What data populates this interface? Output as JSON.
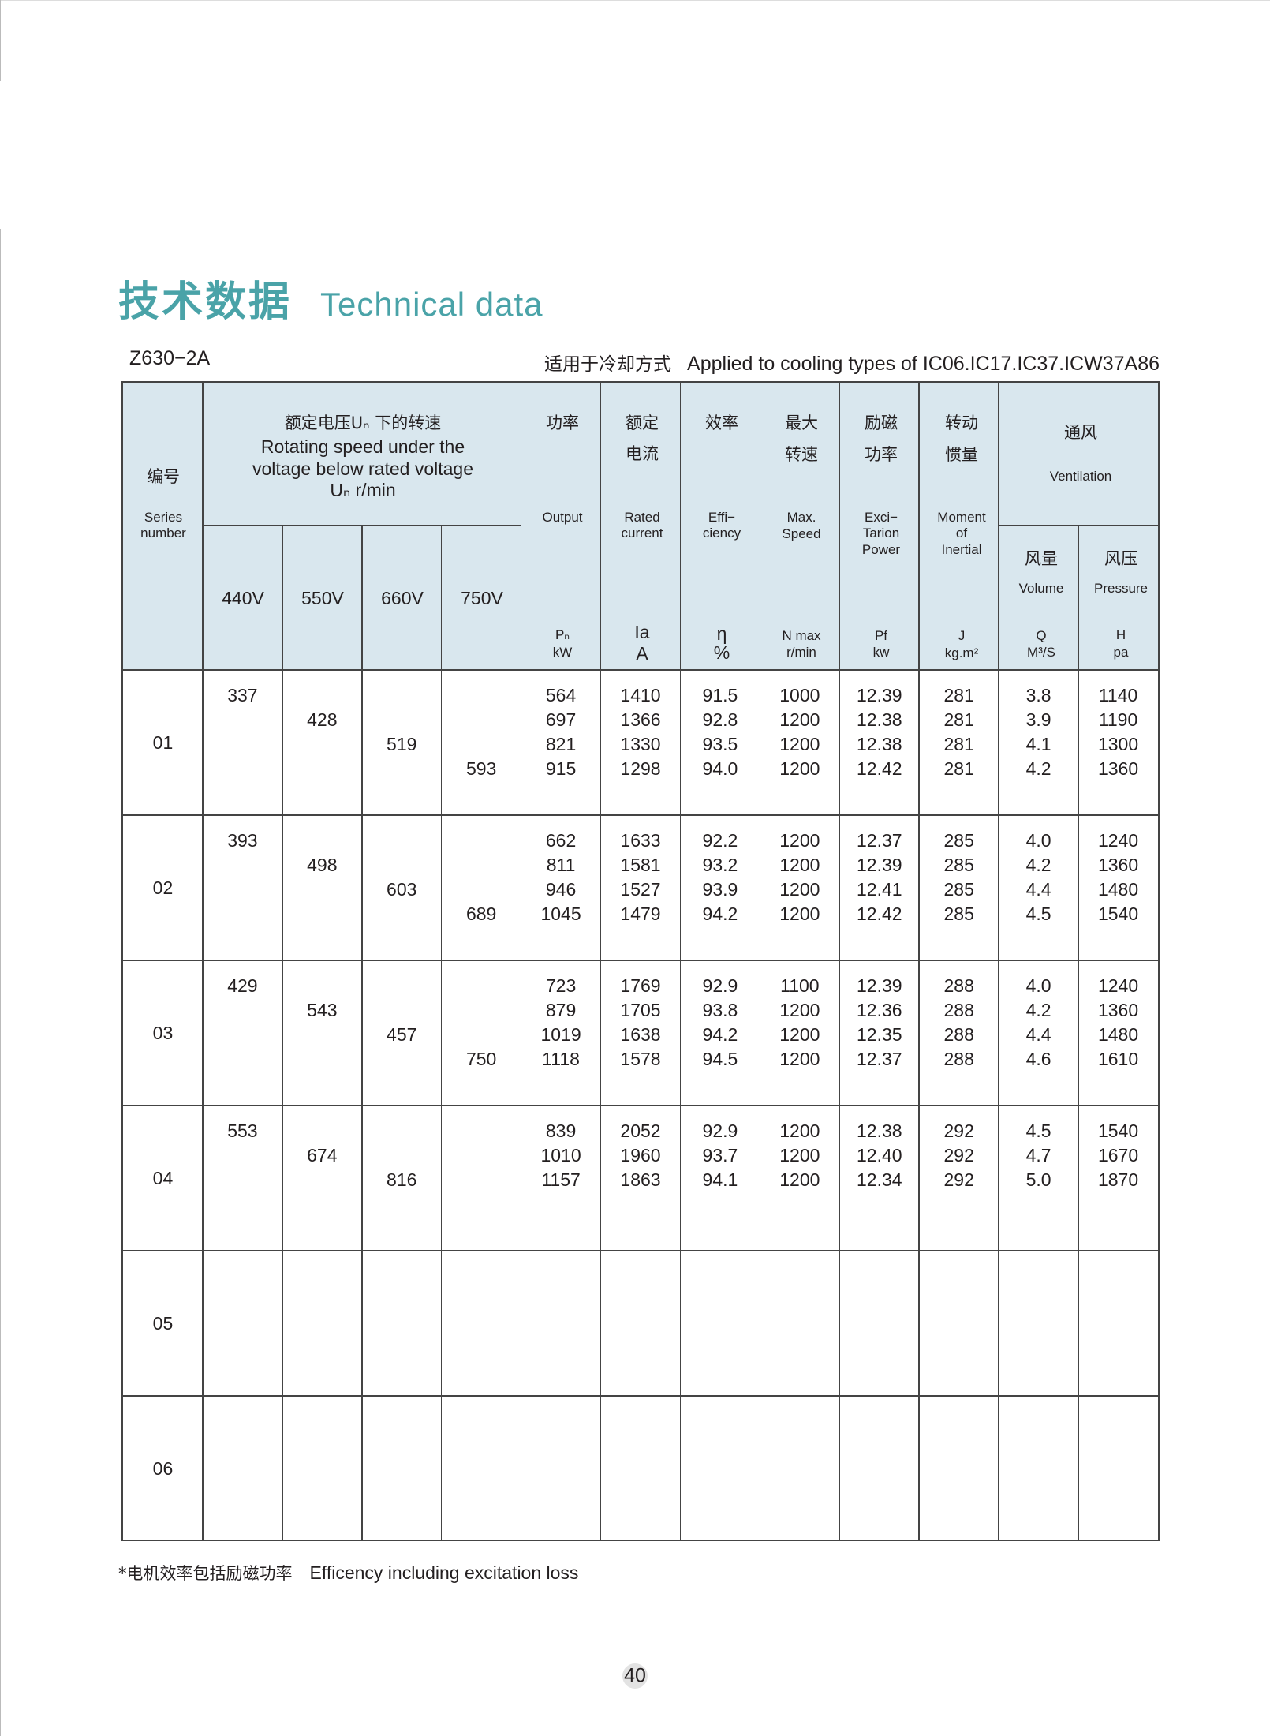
{
  "title": {
    "cn": "技术数据",
    "en": "Technical data"
  },
  "subtitle": {
    "model": "Z630−2A",
    "cooling_cn": "适用于冷却方式",
    "cooling_en": "Applied to cooling types of IC06.IC17.IC37.ICW37A86"
  },
  "header": {
    "series": {
      "cn": "编号",
      "en1": "Series",
      "en2": "number"
    },
    "speed_group": {
      "cn": "额定电压Uₙ 下的转速",
      "en1": "Rotating speed under the",
      "en2": "voltage below rated voltage",
      "en3": "Uₙ  r/min"
    },
    "voltages": [
      "440V",
      "550V",
      "660V",
      "750V"
    ],
    "output": {
      "cn": "功率",
      "en": "Output",
      "sym": "Pₙ",
      "unit": "kW"
    },
    "current": {
      "cn1": "额定",
      "cn2": "电流",
      "en1": "Rated",
      "en2": "current",
      "sym": "Ia",
      "unit": "A"
    },
    "efficiency": {
      "cn": "效率",
      "en1": "Effi−",
      "en2": "ciency",
      "sym": "η",
      "unit": "%"
    },
    "max_speed": {
      "cn1": "最大",
      "cn2": "转速",
      "en1": "Max.",
      "en2": "Speed",
      "sym": "N max",
      "unit": "r/min"
    },
    "excitation": {
      "cn1": "励磁",
      "cn2": "功率",
      "en1": "Exci−",
      "en2": "Tarion",
      "en3": "Power",
      "sym": "Pf",
      "unit": "kw"
    },
    "inertia": {
      "cn1": "转动",
      "cn2": "惯量",
      "en1": "Moment",
      "en2": "of",
      "en3": "Inertial",
      "sym": "J",
      "unit": "kg.m²"
    },
    "ventilation": {
      "cn": "通风",
      "en": "Ventilation",
      "volume": {
        "cn": "风量",
        "en": "Volume",
        "sym": "Q",
        "unit": "M³/S"
      },
      "pressure": {
        "cn": "风压",
        "en": "Pressure",
        "sym": "H",
        "unit": "pa"
      }
    }
  },
  "rows": [
    {
      "series": "01",
      "speeds": [
        "337",
        "428",
        "519",
        "593"
      ],
      "output": [
        "564",
        "697",
        "821",
        "915"
      ],
      "current": [
        "1410",
        "1366",
        "1330",
        "1298"
      ],
      "efficiency": [
        "91.5",
        "92.8",
        "93.5",
        "94.0"
      ],
      "max_speed": [
        "1000",
        "1200",
        "1200",
        "1200"
      ],
      "excitation": [
        "12.39",
        "12.38",
        "12.38",
        "12.42"
      ],
      "inertia": [
        "281",
        "281",
        "281",
        "281"
      ],
      "volume": [
        "3.8",
        "3.9",
        "4.1",
        "4.2"
      ],
      "pressure": [
        "1140",
        "1190",
        "1300",
        "1360"
      ]
    },
    {
      "series": "02",
      "speeds": [
        "393",
        "498",
        "603",
        "689"
      ],
      "output": [
        "662",
        "811",
        "946",
        "1045"
      ],
      "current": [
        "1633",
        "1581",
        "1527",
        "1479"
      ],
      "efficiency": [
        "92.2",
        "93.2",
        "93.9",
        "94.2"
      ],
      "max_speed": [
        "1200",
        "1200",
        "1200",
        "1200"
      ],
      "excitation": [
        "12.37",
        "12.39",
        "12.41",
        "12.42"
      ],
      "inertia": [
        "285",
        "285",
        "285",
        "285"
      ],
      "volume": [
        "4.0",
        "4.2",
        "4.4",
        "4.5"
      ],
      "pressure": [
        "1240",
        "1360",
        "1480",
        "1540"
      ]
    },
    {
      "series": "03",
      "speeds": [
        "429",
        "543",
        "457",
        "750"
      ],
      "output": [
        "723",
        "879",
        "1019",
        "1118"
      ],
      "current": [
        "1769",
        "1705",
        "1638",
        "1578"
      ],
      "efficiency": [
        "92.9",
        "93.8",
        "94.2",
        "94.5"
      ],
      "max_speed": [
        "1100",
        "1200",
        "1200",
        "1200"
      ],
      "excitation": [
        "12.39",
        "12.36",
        "12.35",
        "12.37"
      ],
      "inertia": [
        "288",
        "288",
        "288",
        "288"
      ],
      "volume": [
        "4.0",
        "4.2",
        "4.4",
        "4.6"
      ],
      "pressure": [
        "1240",
        "1360",
        "1480",
        "1610"
      ]
    },
    {
      "series": "04",
      "speeds": [
        "553",
        "674",
        "816",
        ""
      ],
      "output": [
        "839",
        "1010",
        "1157"
      ],
      "current": [
        "2052",
        "1960",
        "1863"
      ],
      "efficiency": [
        "92.9",
        "93.7",
        "94.1"
      ],
      "max_speed": [
        "1200",
        "1200",
        "1200"
      ],
      "excitation": [
        "12.38",
        "12.40",
        "12.34"
      ],
      "inertia": [
        "292",
        "292",
        "292"
      ],
      "volume": [
        "4.5",
        "4.7",
        "5.0"
      ],
      "pressure": [
        "1540",
        "1670",
        "1870"
      ]
    },
    {
      "series": "05",
      "speeds": [],
      "output": [],
      "current": [],
      "efficiency": [],
      "max_speed": [],
      "excitation": [],
      "inertia": [],
      "volume": [],
      "pressure": []
    },
    {
      "series": "06",
      "speeds": [],
      "output": [],
      "current": [],
      "efficiency": [],
      "max_speed": [],
      "excitation": [],
      "inertia": [],
      "volume": [],
      "pressure": []
    }
  ],
  "footnote": {
    "cn": "*电机效率包括励磁功率",
    "en": "Efficency including excitation loss"
  },
  "page_number": "40",
  "colors": {
    "title": "#4aa3a8",
    "header_bg": "#d9e7ee",
    "grid": "#444444"
  }
}
